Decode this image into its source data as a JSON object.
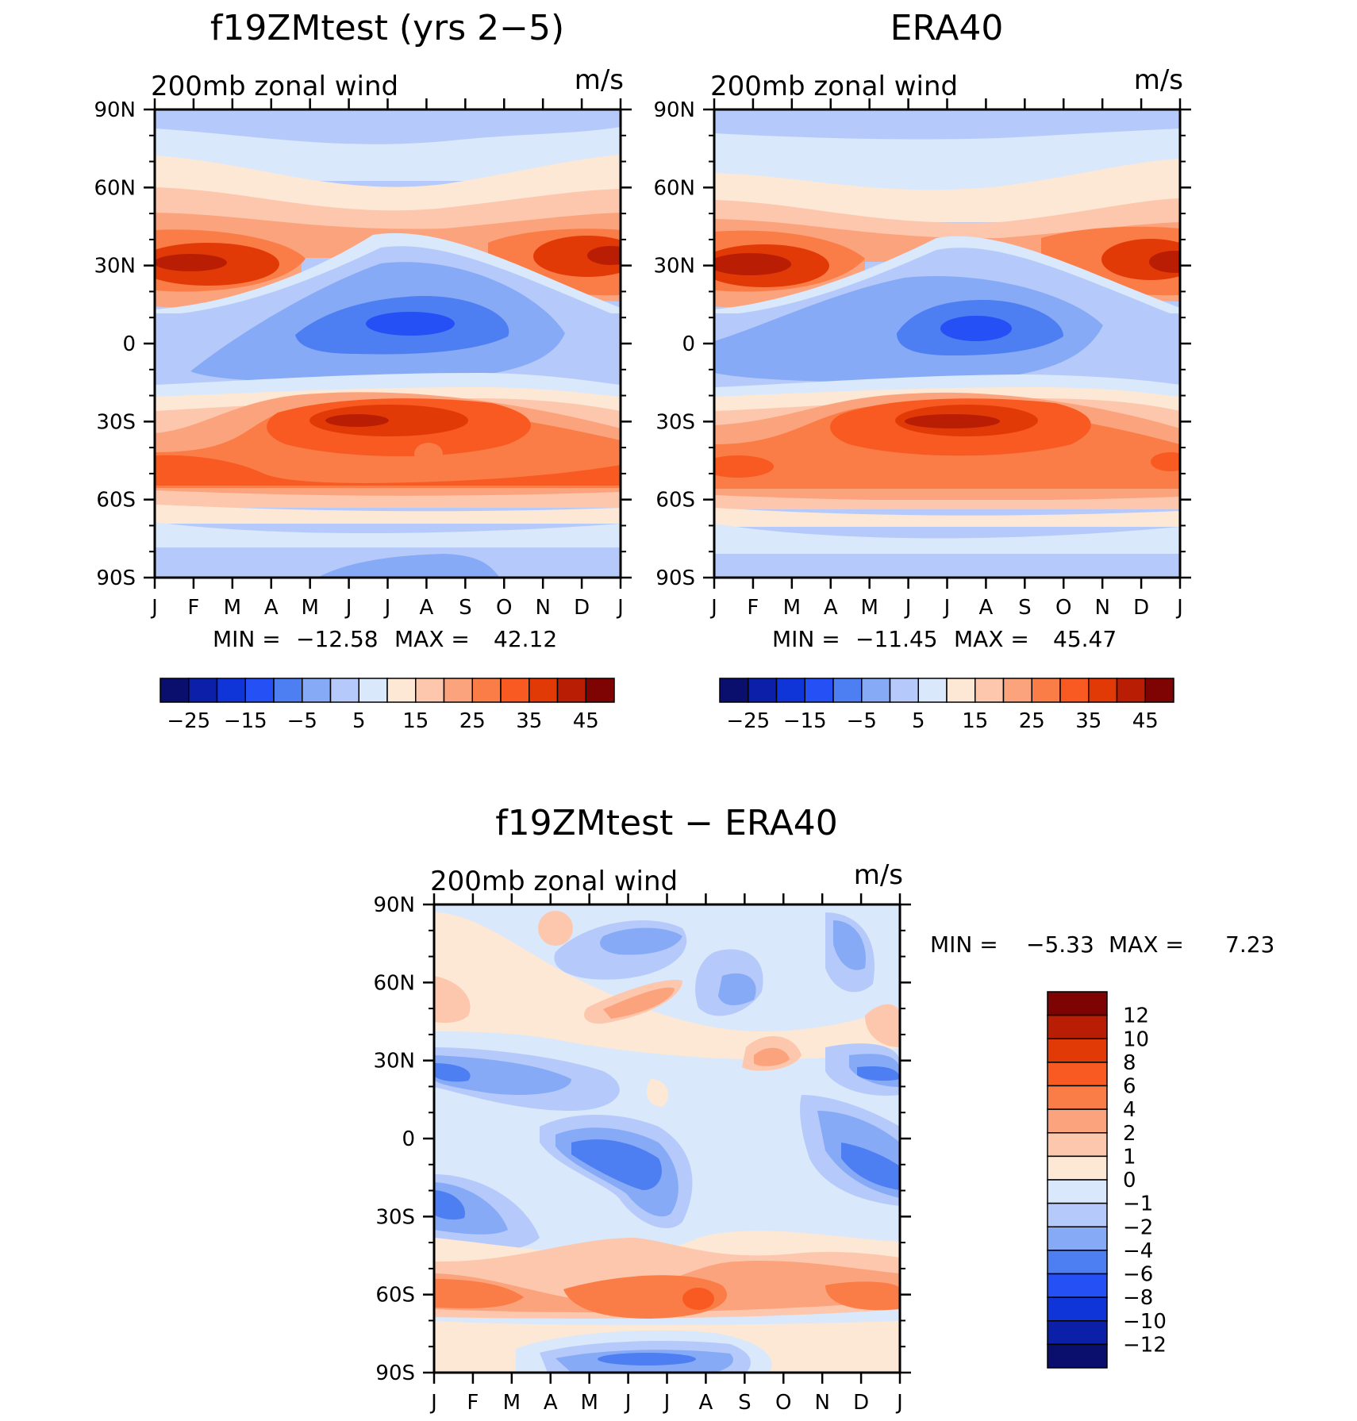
{
  "panels": [
    {
      "id": "model",
      "title": "f19ZMtest (yrs 2−5)",
      "left_label": "200mb zonal wind",
      "right_label": "m/s",
      "stats": {
        "min_label": "MIN =",
        "min": "−12.58",
        "max_label": "MAX =",
        "max": "42.12"
      }
    },
    {
      "id": "obs",
      "title": "ERA40",
      "left_label": "200mb zonal wind",
      "right_label": "m/s",
      "stats": {
        "min_label": "MIN =",
        "min": "−11.45",
        "max_label": "MAX =",
        "max": "45.47"
      }
    },
    {
      "id": "diff",
      "title": "f19ZMtest − ERA40",
      "left_label": "200mb zonal wind",
      "right_label": "m/s",
      "stats": {
        "min_label": "MIN =",
        "min": "−5.33",
        "max_label": "MAX =",
        "max": "7.23"
      }
    }
  ],
  "chart_data": [
    {
      "type": "heatmap",
      "title": "f19ZMtest (yrs 2−5)",
      "subtitle_left": "200mb zonal wind",
      "subtitle_right": "m/s",
      "x_ticks": [
        "J",
        "F",
        "M",
        "A",
        "M",
        "J",
        "J",
        "A",
        "S",
        "O",
        "N",
        "D",
        "J"
      ],
      "y_ticks": [
        "90N",
        "60N",
        "30N",
        "0",
        "30S",
        "60S",
        "90S"
      ],
      "ylim": [
        -90,
        90
      ],
      "min": -12.58,
      "max": 42.12,
      "colorbar_labels": [
        "−25",
        "−15",
        "−5",
        "5",
        "15",
        "25",
        "35",
        "45"
      ],
      "colorbar_colors": [
        "#0a0f6e",
        "#0b1fa8",
        "#0f35d8",
        "#2450f5",
        "#4d7ef2",
        "#86aaf5",
        "#b5cafa",
        "#d9e8fb",
        "#fde8d6",
        "#fcc7ad",
        "#fba37d",
        "#fa7c47",
        "#f85a21",
        "#e23a07",
        "#b91e05",
        "#7e0303"
      ]
    },
    {
      "type": "heatmap",
      "title": "ERA40",
      "subtitle_left": "200mb zonal wind",
      "subtitle_right": "m/s",
      "x_ticks": [
        "J",
        "F",
        "M",
        "A",
        "M",
        "J",
        "J",
        "A",
        "S",
        "O",
        "N",
        "D",
        "J"
      ],
      "y_ticks": [
        "90N",
        "60N",
        "30N",
        "0",
        "30S",
        "60S",
        "90S"
      ],
      "ylim": [
        -90,
        90
      ],
      "min": -11.45,
      "max": 45.47,
      "colorbar_labels": [
        "−25",
        "−15",
        "−5",
        "5",
        "15",
        "25",
        "35",
        "45"
      ],
      "colorbar_colors": [
        "#0a0f6e",
        "#0b1fa8",
        "#0f35d8",
        "#2450f5",
        "#4d7ef2",
        "#86aaf5",
        "#b5cafa",
        "#d9e8fb",
        "#fde8d6",
        "#fcc7ad",
        "#fba37d",
        "#fa7c47",
        "#f85a21",
        "#e23a07",
        "#b91e05",
        "#7e0303"
      ]
    },
    {
      "type": "heatmap",
      "title": "f19ZMtest − ERA40",
      "subtitle_left": "200mb zonal wind",
      "subtitle_right": "m/s",
      "x_ticks": [
        "J",
        "F",
        "M",
        "A",
        "M",
        "J",
        "J",
        "A",
        "S",
        "O",
        "N",
        "D",
        "J"
      ],
      "y_ticks": [
        "90N",
        "60N",
        "30N",
        "0",
        "30S",
        "60S",
        "90S"
      ],
      "ylim": [
        -90,
        90
      ],
      "min": -5.33,
      "max": 7.23,
      "colorbar_labels": [
        "12",
        "10",
        "8",
        "6",
        "4",
        "2",
        "1",
        "0",
        "−1",
        "−2",
        "−4",
        "−6",
        "−8",
        "−10",
        "−12"
      ],
      "colorbar_colors": [
        "#7e0303",
        "#b91e05",
        "#e23a07",
        "#f85a21",
        "#fa7c47",
        "#fba37d",
        "#fcc7ad",
        "#fde8d6",
        "#d9e8fb",
        "#b5cafa",
        "#86aaf5",
        "#4d7ef2",
        "#2450f5",
        "#0f35d8",
        "#0b1fa8",
        "#0a0f6e"
      ]
    }
  ],
  "colors": {
    "palette": [
      "#0a0f6e",
      "#0b1fa8",
      "#0f35d8",
      "#2450f5",
      "#4d7ef2",
      "#86aaf5",
      "#b5cafa",
      "#d9e8fb",
      "#fde8d6",
      "#fcc7ad",
      "#fba37d",
      "#fa7c47",
      "#f85a21",
      "#e23a07",
      "#b91e05",
      "#7e0303"
    ]
  }
}
